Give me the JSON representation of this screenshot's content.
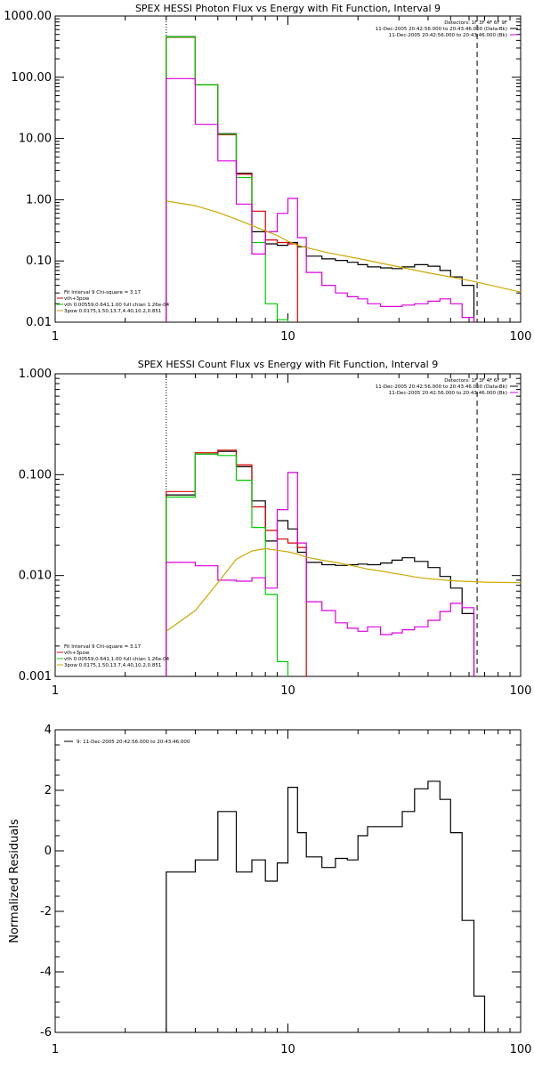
{
  "chart_data": [
    {
      "type": "line",
      "title": "SPEX HESSI Photon Flux vs Energy with Fit Function, Interval 9",
      "xlabel": "",
      "ylabel": "",
      "x_scale": "log",
      "y_scale": "log",
      "xlim": [
        1,
        100
      ],
      "ylim": [
        0.01,
        1000
      ],
      "x_tick_labels": [
        "1",
        "10",
        "100"
      ],
      "y_ticks": [
        0.01,
        0.1,
        1,
        10,
        100,
        1000
      ],
      "y_tick_labels": [
        "0.01",
        "0.10",
        "1.00",
        "10.00",
        "100.00",
        "1000.00"
      ],
      "legend_top_right": [
        {
          "text": "Detectors: 1F 3F 4F 6F 9F",
          "color": "#000000"
        },
        {
          "text": "11-Dec-2005 20:42:56.000 to 20:43:46.000 (Data-Bk)",
          "color": "#000000"
        },
        {
          "text": "11-Dec-2005 20:42:56.000 to 20:43:46.000 (Bk)",
          "color": "#dd00dd"
        }
      ],
      "legend_bottom_left": [
        {
          "text": "Fit Interval  9    Chi-square = 3.17",
          "color": "#000000"
        },
        {
          "text": "vth+3pow",
          "color": "#dd0000"
        },
        {
          "text": "vth 0.00559,0.641,1.00   full chian 1.26e-04",
          "color": "#00cc00"
        },
        {
          "text": "3pow 0.0175,1.50,13.7,4.40,10.2,0.851",
          "color": "#ccaa00"
        }
      ],
      "vlines": [
        {
          "x": 3,
          "style": "dotted"
        },
        {
          "x": 65,
          "style": "dashed"
        }
      ],
      "edges": [
        3,
        4,
        5,
        6,
        7,
        8,
        9,
        10,
        11,
        12,
        14,
        16,
        18,
        20,
        22,
        25,
        28,
        31,
        35,
        40,
        45,
        50,
        56,
        63,
        70
      ],
      "series": [
        {
          "color": "#000000",
          "values": [
            460,
            75,
            12,
            2.7,
            0.3,
            0.19,
            0.18,
            0.2,
            0.17,
            0.12,
            0.108,
            0.102,
            0.095,
            0.087,
            0.08,
            0.077,
            0.075,
            0.08,
            0.087,
            0.082,
            0.07,
            0.055,
            0.04,
            0.003
          ]
        },
        {
          "color": "#dd0000",
          "values": [
            450,
            75,
            11.5,
            2.6,
            0.65,
            0.22,
            0.2,
            0.19
          ]
        },
        {
          "color": "#00cc00",
          "values": [
            455,
            75,
            11.8,
            2.3,
            0.2,
            0.02,
            0.011
          ]
        },
        {
          "color": "#dd00dd",
          "values": [
            95,
            17,
            4.3,
            0.85,
            0.13,
            0.3,
            0.6,
            1.05,
            0.24,
            0.065,
            0.04,
            0.03,
            0.026,
            0.024,
            0.02,
            0.018,
            0.018,
            0.019,
            0.02,
            0.022,
            0.024,
            0.02,
            0.012,
            0.002
          ]
        },
        {
          "color": "#ccaa00",
          "type": "line",
          "x": [
            3,
            4,
            5,
            6,
            7,
            8,
            9,
            10,
            11,
            12,
            15,
            20,
            30,
            40,
            60,
            100
          ],
          "values": [
            0.95,
            0.8,
            0.62,
            0.48,
            0.38,
            0.31,
            0.26,
            0.21,
            0.18,
            0.165,
            0.135,
            0.11,
            0.08,
            0.064,
            0.048,
            0.031
          ]
        }
      ]
    },
    {
      "type": "line",
      "title": "SPEX HESSI Count Flux vs Energy with Fit Function, Interval 9",
      "xlabel": "",
      "ylabel": "",
      "x_scale": "log",
      "y_scale": "log",
      "xlim": [
        1,
        100
      ],
      "ylim": [
        0.001,
        1
      ],
      "x_tick_labels": [
        "1",
        "10",
        "100"
      ],
      "y_ticks": [
        0.001,
        0.01,
        0.1,
        1
      ],
      "y_tick_labels": [
        "0.001",
        "0.010",
        "0.100",
        "1.000"
      ],
      "legend_top_right": [
        {
          "text": "Detectors: 1F 3F 4F 6F 9F",
          "color": "#000000"
        },
        {
          "text": "11-Dec-2005 20:42:56.000 to 20:43:46.000 (Data-Bk)",
          "color": "#000000"
        },
        {
          "text": "11-Dec-2005 20:42:56.000 to 20:43:46.000 (Bk)",
          "color": "#dd00dd"
        }
      ],
      "legend_bottom_left": [
        {
          "text": "Fit Interval  9    Chi-square = 3.17",
          "color": "#000000"
        },
        {
          "text": "vth+3pow",
          "color": "#dd0000"
        },
        {
          "text": "vth 0.00559,0.641,1.00   full chian 1.26e-04",
          "color": "#00cc00"
        },
        {
          "text": "3pow 0.0175,1.50,13.7,4.40,10.2,0.851",
          "color": "#ccaa00"
        }
      ],
      "vlines": [
        {
          "x": 3,
          "style": "dotted"
        },
        {
          "x": 65,
          "style": "dashed"
        }
      ],
      "edges": [
        3,
        4,
        5,
        6,
        7,
        8,
        9,
        10,
        11,
        12,
        14,
        16,
        18,
        20,
        22,
        25,
        28,
        31,
        35,
        40,
        45,
        50,
        56,
        63,
        70
      ],
      "series": [
        {
          "color": "#000000",
          "values": [
            0.063,
            0.16,
            0.17,
            0.12,
            0.055,
            0.022,
            0.035,
            0.029,
            0.017,
            0.0135,
            0.0128,
            0.0126,
            0.0128,
            0.013,
            0.0128,
            0.0133,
            0.0142,
            0.015,
            0.0138,
            0.012,
            0.0098,
            0.0075,
            0.0042,
            0.0007
          ]
        },
        {
          "color": "#dd0000",
          "values": [
            0.068,
            0.165,
            0.175,
            0.125,
            0.048,
            0.028,
            0.023,
            0.021,
            0.019
          ]
        },
        {
          "color": "#00cc00",
          "values": [
            0.06,
            0.16,
            0.155,
            0.088,
            0.03,
            0.0065,
            0.0014,
            0.0007
          ]
        },
        {
          "color": "#dd00dd",
          "values": [
            0.0135,
            0.0125,
            0.009,
            0.0088,
            0.0095,
            0.0075,
            0.045,
            0.105,
            0.021,
            0.0055,
            0.0045,
            0.0034,
            0.003,
            0.0028,
            0.0031,
            0.0026,
            0.0027,
            0.0029,
            0.0031,
            0.0036,
            0.0044,
            0.0053,
            0.0048,
            0.0008
          ]
        },
        {
          "color": "#ccaa00",
          "values": [
            0.0028,
            0.0045,
            0.0085,
            0.0145,
            0.0175,
            0.0185,
            0.0178,
            0.0172,
            0.0163,
            0.0152,
            0.0142,
            0.0135,
            0.0128,
            0.0122,
            0.0116,
            0.0111,
            0.0106,
            0.0102,
            0.0097,
            0.0093,
            0.0091,
            0.0089,
            0.0088,
            0.0087,
            0.0086,
            0.0085
          ]
        }
      ],
      "line_x": [
        3,
        4,
        5,
        6,
        7,
        8,
        9,
        10,
        11,
        12,
        14,
        16,
        18,
        20,
        22,
        25,
        28,
        31,
        35,
        40,
        45,
        50,
        56,
        63,
        70,
        100
      ]
    },
    {
      "type": "line",
      "title": "",
      "xlabel": "",
      "ylabel": "Normalized Residuals",
      "x_scale": "log",
      "y_scale": "linear",
      "xlim": [
        1,
        100
      ],
      "ylim": [
        -6,
        4
      ],
      "x_tick_labels": [
        "1",
        "10",
        "100"
      ],
      "y_ticks": [
        -6,
        -4,
        -2,
        0,
        2,
        4
      ],
      "y_tick_labels": [
        "-6",
        "-4",
        "-2",
        "0",
        "2",
        "4"
      ],
      "legend_top_left": [
        {
          "text": "9: 11-Dec-2005 20:42:56.000 to 20:43:46.000",
          "color": "#000000"
        }
      ],
      "edges": [
        3,
        4,
        5,
        6,
        7,
        8,
        9,
        10,
        11,
        12,
        14,
        16,
        18,
        20,
        22,
        25,
        28,
        31,
        35,
        40,
        45,
        50,
        56,
        63,
        70
      ],
      "series": [
        {
          "color": "#000000",
          "values": [
            -0.7,
            -0.3,
            1.3,
            -0.7,
            -0.3,
            -1.0,
            -0.4,
            2.1,
            0.6,
            -0.2,
            -0.55,
            -0.25,
            -0.3,
            0.5,
            0.8,
            0.8,
            0.8,
            1.3,
            2.05,
            2.3,
            1.7,
            0.6,
            -2.3,
            -4.8
          ]
        }
      ]
    }
  ]
}
